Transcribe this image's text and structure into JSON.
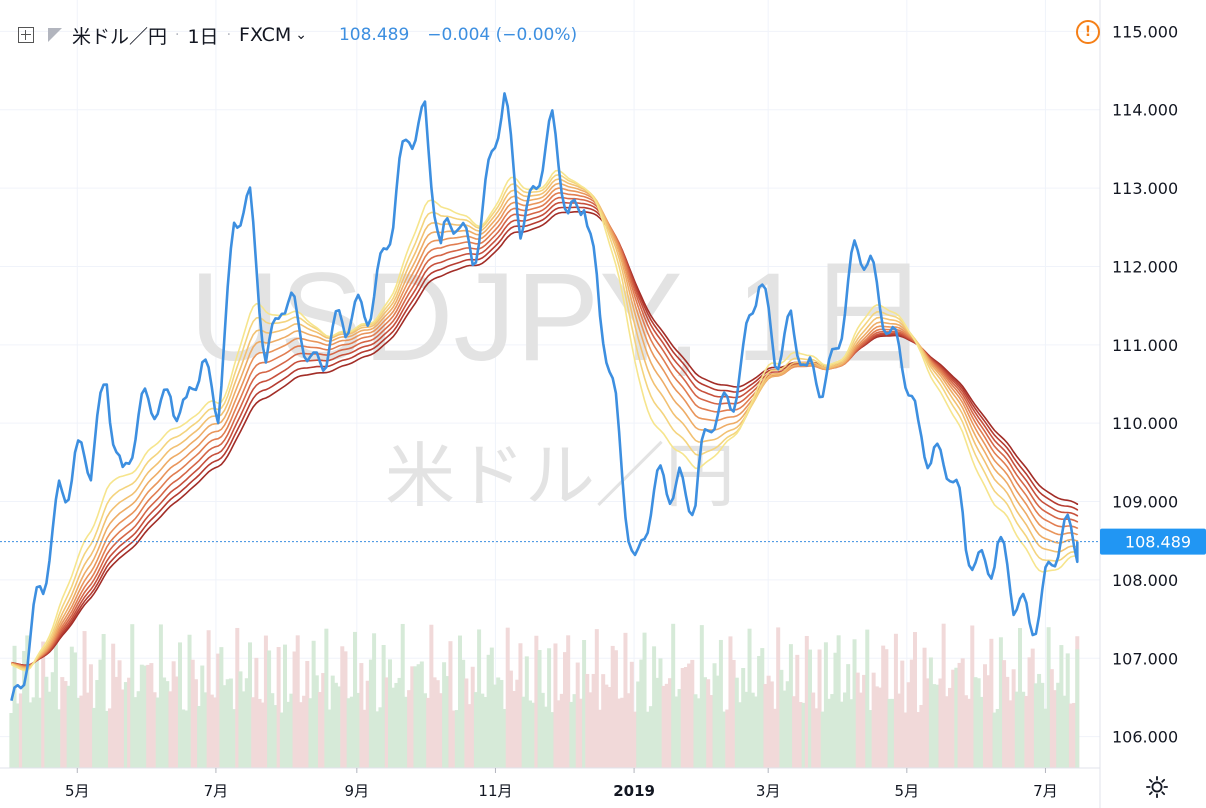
{
  "header": {
    "symbol": "米ドル／円",
    "interval": "1日",
    "exchange": "FXCM",
    "price": "108.489",
    "change": "−0.004 (−0.00%)"
  },
  "watermark": {
    "main": "USDJPY, 1日",
    "sub": "米ドル／円"
  },
  "colors": {
    "price_line": "#3d8fe0",
    "ribbon": [
      "#f6e58d",
      "#f4d47e",
      "#f2c172",
      "#eeac66",
      "#e9955b",
      "#e17d51",
      "#d56647",
      "#c7503c",
      "#b63c31",
      "#a22d27"
    ],
    "volume_up": "#d6ead8",
    "volume_down": "#f1d9d9",
    "badge": "#2196f3"
  },
  "chart_data": {
    "type": "line",
    "title": "",
    "y_axis": {
      "side": "right",
      "ylim": [
        105.6,
        115.4
      ],
      "ticks": [
        "115.000",
        "114.000",
        "113.000",
        "112.000",
        "111.000",
        "110.000",
        "109.000",
        "108.000",
        "107.000",
        "106.000"
      ]
    },
    "x_axis": {
      "ticks": [
        "5月",
        "7月",
        "9月",
        "11月",
        "2019",
        "3月",
        "5月",
        "7月"
      ]
    },
    "grid": true,
    "last_price_label": "108.489",
    "price_series": {
      "name": "米ドル／円",
      "x": [
        "2018-04-02",
        "2018-04-09",
        "2018-04-16",
        "2018-04-23",
        "2018-04-30",
        "2018-05-07",
        "2018-05-14",
        "2018-05-21",
        "2018-05-28",
        "2018-06-04",
        "2018-06-11",
        "2018-06-18",
        "2018-06-25",
        "2018-07-02",
        "2018-07-09",
        "2018-07-16",
        "2018-07-23",
        "2018-07-30",
        "2018-08-06",
        "2018-08-13",
        "2018-08-20",
        "2018-08-27",
        "2018-09-03",
        "2018-09-10",
        "2018-09-17",
        "2018-09-24",
        "2018-10-01",
        "2018-10-08",
        "2018-10-15",
        "2018-10-22",
        "2018-10-29",
        "2018-11-05",
        "2018-11-12",
        "2018-11-19",
        "2018-11-26",
        "2018-12-03",
        "2018-12-10",
        "2018-12-17",
        "2018-12-24",
        "2019-01-02",
        "2019-01-07",
        "2019-01-14",
        "2019-01-21",
        "2019-01-28",
        "2019-02-04",
        "2019-02-11",
        "2019-02-18",
        "2019-02-25",
        "2019-03-04",
        "2019-03-11",
        "2019-03-18",
        "2019-03-25",
        "2019-04-01",
        "2019-04-08",
        "2019-04-15",
        "2019-04-22",
        "2019-04-29",
        "2019-05-06",
        "2019-05-13",
        "2019-05-20",
        "2019-05-27",
        "2019-06-03",
        "2019-06-10",
        "2019-06-17",
        "2019-06-24",
        "2019-07-01",
        "2019-07-08",
        "2019-07-15"
      ],
      "y": [
        106.6,
        107.0,
        107.7,
        109.3,
        109.6,
        109.2,
        110.7,
        109.4,
        109.8,
        110.3,
        110.6,
        109.9,
        110.7,
        110.5,
        112.4,
        112.6,
        111.1,
        111.6,
        111.0,
        110.9,
        111.2,
        111.0,
        111.5,
        112.0,
        112.4,
        113.7,
        114.2,
        112.0,
        112.5,
        112.4,
        113.1,
        113.9,
        112.8,
        113.1,
        113.5,
        112.8,
        113.1,
        111.1,
        110.2,
        108.2,
        108.6,
        109.2,
        109.5,
        108.9,
        109.9,
        110.5,
        110.8,
        111.6,
        111.1,
        111.4,
        110.3,
        110.6,
        111.3,
        111.9,
        112.0,
        111.6,
        110.6,
        109.7,
        109.9,
        109.4,
        108.2,
        108.4,
        108.5,
        107.5,
        107.6,
        108.1,
        108.3,
        108.49
      ],
      "last": 108.489
    },
    "ribbon_ema_periods": [
      5,
      6,
      7,
      8,
      9,
      10,
      11,
      12,
      13,
      14
    ]
  }
}
